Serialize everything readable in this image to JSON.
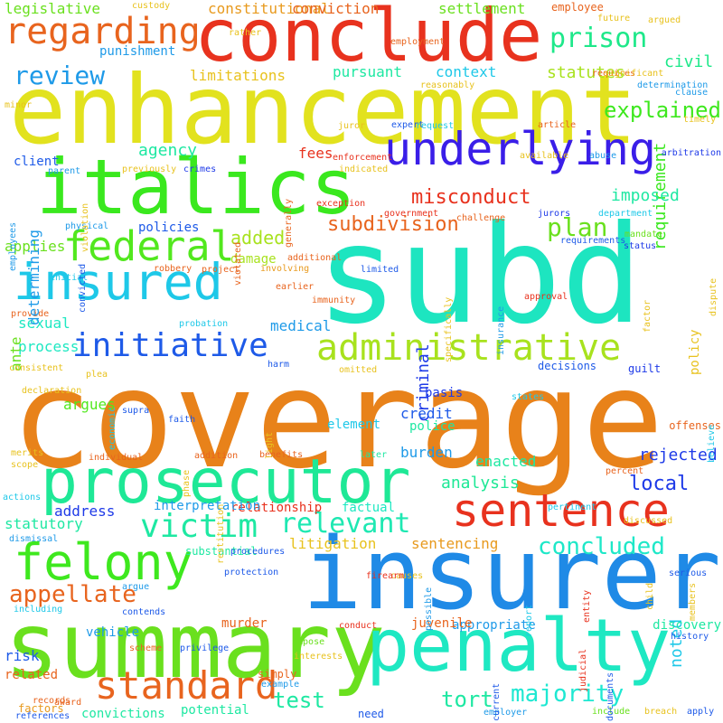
{
  "words": [
    {
      "text": "coverage",
      "color": "#e8821a"
    },
    {
      "text": "subd",
      "color": "#1de5c0"
    },
    {
      "text": "insurer",
      "color": "#1f8ae6"
    },
    {
      "text": "enhancement",
      "color": "#e2e21e"
    },
    {
      "text": "conclude",
      "color": "#e8321e"
    },
    {
      "text": "summary",
      "color": "#6ae01e"
    },
    {
      "text": "italics",
      "color": "#3ae81e"
    },
    {
      "text": "prosecutor",
      "color": "#1ee896"
    },
    {
      "text": "penalty",
      "color": "#1ee8c2"
    },
    {
      "text": "underlying",
      "color": "#3a1ee8"
    },
    {
      "text": "insured",
      "color": "#1ec8e8"
    },
    {
      "text": "felony",
      "color": "#3ee81e"
    },
    {
      "text": "sentence",
      "color": "#e8321e"
    },
    {
      "text": "administrative",
      "color": "#a8e21e"
    },
    {
      "text": "initiative",
      "color": "#1e5ae8"
    },
    {
      "text": "federal",
      "color": "#52e81e"
    },
    {
      "text": "victim",
      "color": "#1ee8a2"
    },
    {
      "text": "relevant",
      "color": "#1ee8b2"
    },
    {
      "text": "standard",
      "color": "#e8641e"
    },
    {
      "text": "regarding",
      "color": "#e8641e"
    },
    {
      "text": "prison",
      "color": "#1ee88a"
    },
    {
      "text": "review",
      "color": "#1e9ae8"
    },
    {
      "text": "concluded",
      "color": "#1ee8c8"
    },
    {
      "text": "majority",
      "color": "#1ee8d2"
    },
    {
      "text": "appellate",
      "color": "#e8641e"
    },
    {
      "text": "tort",
      "color": "#1ee8a2"
    },
    {
      "text": "plan",
      "color": "#6ae01e"
    },
    {
      "text": "explained",
      "color": "#3ee81e"
    },
    {
      "text": "subdivision",
      "color": "#e8641e"
    },
    {
      "text": "misconduct",
      "color": "#e8321e"
    },
    {
      "text": "added",
      "color": "#a8e21e"
    },
    {
      "text": "requirement",
      "color": "#3ae81e"
    },
    {
      "text": "imposed",
      "color": "#1ee8a2"
    },
    {
      "text": "statutes",
      "color": "#a8e21e"
    },
    {
      "text": "test",
      "color": "#1ee8a2"
    },
    {
      "text": "local",
      "color": "#1e3ae8"
    },
    {
      "text": "rejected",
      "color": "#1e3ae8"
    },
    {
      "text": "analysis",
      "color": "#1ee896"
    },
    {
      "text": "sentencing",
      "color": "#e89a1e"
    },
    {
      "text": "litigation",
      "color": "#e8c21e"
    },
    {
      "text": "constitutional",
      "color": "#e89a1e"
    },
    {
      "text": "legislative",
      "color": "#6ae01e"
    },
    {
      "text": "conviction",
      "color": "#e8641e"
    },
    {
      "text": "settlement",
      "color": "#6ae01e"
    },
    {
      "text": "employee",
      "color": "#e8641e"
    },
    {
      "text": "civil",
      "color": "#1ee88a"
    },
    {
      "text": "context",
      "color": "#1ec8e8"
    },
    {
      "text": "pursuant",
      "color": "#1ee8a2"
    },
    {
      "text": "limitations",
      "color": "#e8c21e"
    },
    {
      "text": "punishment",
      "color": "#1e9ae8"
    },
    {
      "text": "agency",
      "color": "#1ee8a2"
    },
    {
      "text": "fees",
      "color": "#e8321e"
    },
    {
      "text": "client",
      "color": "#1e5ae8"
    },
    {
      "text": "policies",
      "color": "#1e5ae8"
    },
    {
      "text": "applies",
      "color": "#6ae01e"
    },
    {
      "text": "criminal",
      "color": "#1e3ae8"
    },
    {
      "text": "damage",
      "color": "#a8e21e"
    },
    {
      "text": "medical",
      "color": "#1e9ae8"
    },
    {
      "text": "sexual",
      "color": "#1ee8c2"
    },
    {
      "text": "process",
      "color": "#1ee8c2"
    },
    {
      "text": "ante",
      "color": "#6ae01e"
    },
    {
      "text": "argues",
      "color": "#52e81e"
    },
    {
      "text": "credit",
      "color": "#1e5ae8"
    },
    {
      "text": "basis",
      "color": "#1e3ae8"
    },
    {
      "text": "police",
      "color": "#1ee8a2"
    },
    {
      "text": "burden",
      "color": "#1e9ae8"
    },
    {
      "text": "enacted",
      "color": "#1ee8a2"
    },
    {
      "text": "noted",
      "color": "#1ec8e8"
    },
    {
      "text": "element",
      "color": "#1ec8e8"
    },
    {
      "text": "appropriate",
      "color": "#1e9ae8"
    },
    {
      "text": "juvenile",
      "color": "#e8641e"
    },
    {
      "text": "discovery",
      "color": "#1ee8a2"
    },
    {
      "text": "murder",
      "color": "#e8641e"
    },
    {
      "text": "vehicle",
      "color": "#1e9ae8"
    },
    {
      "text": "risk",
      "color": "#1e5ae8"
    },
    {
      "text": "related",
      "color": "#e8641e"
    },
    {
      "text": "factors",
      "color": "#e89a1e"
    },
    {
      "text": "convictions",
      "color": "#1ee8a2"
    },
    {
      "text": "potential",
      "color": "#1ee8a2"
    },
    {
      "text": "statutory",
      "color": "#1ee8a2"
    },
    {
      "text": "address",
      "color": "#1e3ae8"
    },
    {
      "text": "relationship",
      "color": "#e8321e"
    },
    {
      "text": "factual",
      "color": "#1ee8c2"
    },
    {
      "text": "interpretation",
      "color": "#1e9ae8"
    },
    {
      "text": "substantial",
      "color": "#1ee8a2"
    },
    {
      "text": "protection",
      "color": "#1e5ae8"
    },
    {
      "text": "argue",
      "color": "#1e9ae8"
    },
    {
      "text": "including",
      "color": "#1ec8e8"
    },
    {
      "text": "contends",
      "color": "#1e5ae8"
    },
    {
      "text": "conduct",
      "color": "#e8321e"
    },
    {
      "text": "causes",
      "color": "#e8c21e"
    },
    {
      "text": "impose",
      "color": "#6ae01e"
    },
    {
      "text": "interests",
      "color": "#e8c21e"
    },
    {
      "text": "simply",
      "color": "#e8641e"
    },
    {
      "text": "example",
      "color": "#1e9ae8"
    },
    {
      "text": "privilege",
      "color": "#1e5ae8"
    },
    {
      "text": "scheme",
      "color": "#e8641e"
    },
    {
      "text": "award",
      "color": "#e8641e"
    },
    {
      "text": "need",
      "color": "#1e5ae8"
    },
    {
      "text": "employer",
      "color": "#1e9ae8"
    },
    {
      "text": "include",
      "color": "#6ae01e"
    },
    {
      "text": "breach",
      "color": "#e8c21e"
    },
    {
      "text": "apply",
      "color": "#1e5ae8"
    },
    {
      "text": "history",
      "color": "#1e5ae8"
    },
    {
      "text": "members",
      "color": "#e8c21e"
    },
    {
      "text": "judicial",
      "color": "#e8321e"
    },
    {
      "text": "serious",
      "color": "#1e5ae8"
    },
    {
      "text": "harm",
      "color": "#1e5ae8"
    },
    {
      "text": "decisions",
      "color": "#1e5ae8"
    },
    {
      "text": "guilt",
      "color": "#1e3ae8"
    },
    {
      "text": "omitted",
      "color": "#e8c21e"
    },
    {
      "text": "plea",
      "color": "#e8c21e"
    },
    {
      "text": "declaration",
      "color": "#e8c21e"
    },
    {
      "text": "consistent",
      "color": "#e8c21e"
    },
    {
      "text": "supra",
      "color": "#1e5ae8"
    },
    {
      "text": "faith",
      "color": "#1e5ae8"
    },
    {
      "text": "economic",
      "color": "#1ec8e8"
    },
    {
      "text": "merits",
      "color": "#e8c21e"
    },
    {
      "text": "scope",
      "color": "#e8c21e"
    },
    {
      "text": "individual",
      "color": "#e8641e"
    },
    {
      "text": "addition",
      "color": "#e8641e"
    },
    {
      "text": "benefits",
      "color": "#e8641e"
    },
    {
      "text": "later",
      "color": "#1ee8a2"
    },
    {
      "text": "actions",
      "color": "#1ec8e8"
    },
    {
      "text": "dismissal",
      "color": "#1e9ae8"
    },
    {
      "text": "states",
      "color": "#1ec8e8"
    },
    {
      "text": "percent",
      "color": "#e8641e"
    },
    {
      "text": "offenses",
      "color": "#e8641e"
    },
    {
      "text": "believe",
      "color": "#1ec8e8"
    },
    {
      "text": "discussed",
      "color": "#e8c21e"
    },
    {
      "text": "pertinent",
      "color": "#1ec8e8"
    },
    {
      "text": "firearm",
      "color": "#e8321e"
    },
    {
      "text": "report",
      "color": "#1ec8e8"
    },
    {
      "text": "documents",
      "color": "#1e5ae8"
    },
    {
      "text": "entity",
      "color": "#e8321e"
    },
    {
      "text": "current",
      "color": "#1e5ae8"
    },
    {
      "text": "records",
      "color": "#e8641e"
    },
    {
      "text": "enforcement",
      "color": "#e8321e"
    },
    {
      "text": "indicated",
      "color": "#e8c21e"
    },
    {
      "text": "previously",
      "color": "#e8c21e"
    },
    {
      "text": "crimes",
      "color": "#1e3ae8"
    },
    {
      "text": "available",
      "color": "#e8c21e"
    },
    {
      "text": "abuse",
      "color": "#1e9ae8"
    },
    {
      "text": "arbitration",
      "color": "#1e3ae8"
    },
    {
      "text": "exception",
      "color": "#e8321e"
    },
    {
      "text": "government",
      "color": "#e8321e"
    },
    {
      "text": "jurors",
      "color": "#1e3ae8"
    },
    {
      "text": "department",
      "color": "#1ec8e8"
    },
    {
      "text": "challenge",
      "color": "#e8641e"
    },
    {
      "text": "requirements",
      "color": "#1e5ae8"
    },
    {
      "text": "status",
      "color": "#1e3ae8"
    },
    {
      "text": "mandate",
      "color": "#6ae01e"
    },
    {
      "text": "additional",
      "color": "#e8641e"
    },
    {
      "text": "involving",
      "color": "#e89a1e"
    },
    {
      "text": "robbery",
      "color": "#e8641e"
    },
    {
      "text": "project",
      "color": "#e8641e"
    },
    {
      "text": "physical",
      "color": "#1e9ae8"
    },
    {
      "text": "initial",
      "color": "#1ec8e8"
    },
    {
      "text": "provide",
      "color": "#e8641e"
    },
    {
      "text": "convicted",
      "color": "#1e5ae8"
    },
    {
      "text": "earlier",
      "color": "#e8641e"
    },
    {
      "text": "immunity",
      "color": "#e8641e"
    },
    {
      "text": "limited",
      "color": "#1e5ae8"
    },
    {
      "text": "probation",
      "color": "#1ec8e8"
    },
    {
      "text": "approval",
      "color": "#e8321e"
    },
    {
      "text": "parent",
      "color": "#1e9ae8"
    },
    {
      "text": "juror",
      "color": "#e8c21e"
    },
    {
      "text": "expert",
      "color": "#1e5ae8"
    },
    {
      "text": "article",
      "color": "#e8641e"
    },
    {
      "text": "request",
      "color": "#1ec8e8"
    },
    {
      "text": "timely",
      "color": "#e8c21e"
    },
    {
      "text": "minor",
      "color": "#e8c21e"
    },
    {
      "text": "rather",
      "color": "#e8c21e"
    },
    {
      "text": "custody",
      "color": "#e8c21e"
    },
    {
      "text": "future",
      "color": "#e8c21e"
    },
    {
      "text": "employment",
      "color": "#e8641e"
    },
    {
      "text": "requires",
      "color": "#e8641e"
    },
    {
      "text": "argued",
      "color": "#e8c21e"
    },
    {
      "text": "significant",
      "color": "#e8c21e"
    },
    {
      "text": "reasonably",
      "color": "#e8c21e"
    },
    {
      "text": "determination",
      "color": "#1e9ae8"
    },
    {
      "text": "clause",
      "color": "#1e9ae8"
    },
    {
      "text": "procedures",
      "color": "#1e5ae8"
    },
    {
      "text": "references",
      "color": "#1e5ae8"
    },
    {
      "text": "restitution",
      "color": "#e8c21e"
    },
    {
      "text": "light",
      "color": "#e8c21e"
    },
    {
      "text": "phase",
      "color": "#e8c21e"
    },
    {
      "text": "generally",
      "color": "#e8641e"
    },
    {
      "text": "violated",
      "color": "#e8641e"
    },
    {
      "text": "violation",
      "color": "#e8c21e"
    },
    {
      "text": "employees",
      "color": "#1e9ae8"
    },
    {
      "text": "determining",
      "color": "#1e9ae8"
    },
    {
      "text": "insurance",
      "color": "#1e9ae8"
    },
    {
      "text": "specifically",
      "color": "#e8c21e"
    },
    {
      "text": "factor",
      "color": "#e8c21e"
    },
    {
      "text": "policy",
      "color": "#e8c21e"
    },
    {
      "text": "dispute",
      "color": "#e8c21e"
    },
    {
      "text": "possible",
      "color": "#1e9ae8"
    },
    {
      "text": "child",
      "color": "#e8c21e"
    },
    {
      "text": "agreed",
      "color": "#1e9ae8"
    }
  ]
}
